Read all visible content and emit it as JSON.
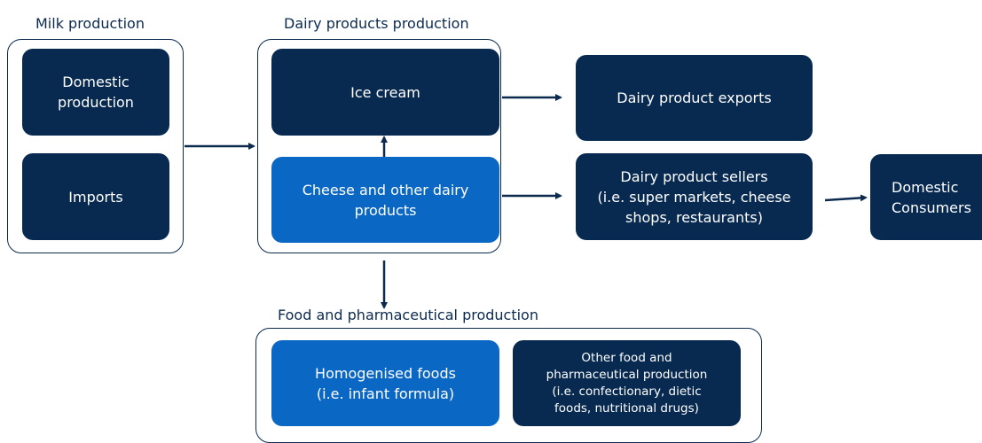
{
  "groups": [
    {
      "title": "Milk production",
      "nodes": [
        {
          "lines": [
            "Domestic",
            "production"
          ]
        },
        {
          "lines": [
            "Imports"
          ]
        }
      ]
    },
    {
      "title": "Dairy products production",
      "nodes": [
        {
          "lines": [
            "Ice cream"
          ]
        },
        {
          "lines": [
            "Cheese and other dairy",
            "products"
          ]
        }
      ]
    },
    {
      "title": "Food and pharmaceutical production",
      "nodes": [
        {
          "lines": [
            "Homogenised foods",
            "(i.e. infant formula)"
          ]
        },
        {
          "lines": [
            "Other food and",
            "pharmaceutical production",
            "(i.e. confectionary, dietic",
            "foods, nutritional drugs)"
          ]
        }
      ]
    }
  ],
  "nodes": [
    {
      "lines": [
        "Dairy product exports"
      ]
    },
    {
      "lines": [
        "Dairy product sellers",
        "(i.e. super markets, cheese",
        "shops, restaurants)"
      ]
    },
    {
      "lines": [
        "Domestic",
        "Consumers"
      ]
    }
  ]
}
